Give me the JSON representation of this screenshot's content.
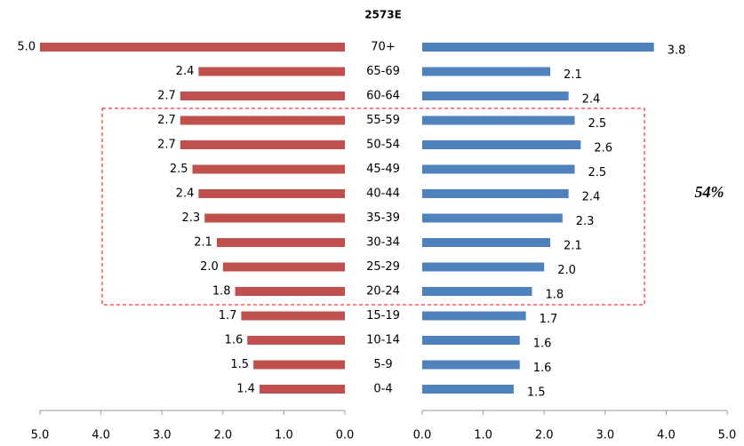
{
  "chart_data": {
    "type": "bar",
    "title": "2573E",
    "annotation": "54%",
    "categories": [
      "70+",
      "65-69",
      "60-64",
      "55-59",
      "50-54",
      "45-49",
      "40-44",
      "35-39",
      "30-34",
      "25-29",
      "20-24",
      "15-19",
      "10-14",
      "5-9",
      "0-4"
    ],
    "series": [
      {
        "color": "#c0504d",
        "xlim": [
          0,
          5
        ],
        "xreverse": true,
        "tick_label_color": "#ff0000",
        "values": [
          5.0,
          2.4,
          2.7,
          2.7,
          2.7,
          2.5,
          2.4,
          2.3,
          2.1,
          2.0,
          1.8,
          1.7,
          1.6,
          1.5,
          1.4
        ],
        "value_labels": [
          "5.0",
          "2.4",
          "2.7",
          "2.7",
          "2.7",
          "2.5",
          "2.4",
          "2.3",
          "2.1",
          "2.0",
          "1.8",
          "1.7",
          "1.6",
          "1.5",
          "1.4"
        ],
        "xticks": [
          {
            "value": 5,
            "label": "5.0"
          },
          {
            "value": 4,
            "label": "4.0"
          },
          {
            "value": 3,
            "label": "3.0"
          },
          {
            "value": 2,
            "label": "2.0"
          },
          {
            "value": 1,
            "label": "1.0"
          },
          {
            "value": 0,
            "label": "0.0"
          }
        ]
      },
      {
        "color": "#4f81bd",
        "xlim": [
          0,
          5
        ],
        "xreverse": false,
        "tick_label_color": "#000000",
        "values": [
          3.8,
          2.1,
          2.4,
          2.5,
          2.6,
          2.5,
          2.4,
          2.3,
          2.1,
          2.0,
          1.8,
          1.7,
          1.6,
          1.6,
          1.5
        ],
        "value_labels": [
          "3.8",
          "2.1",
          "2.4",
          "2.5",
          "2.6",
          "2.5",
          "2.4",
          "2.3",
          "2.1",
          "2.0",
          "1.8",
          "1.7",
          "1.6",
          "1.6",
          "1.5"
        ],
        "xticks": [
          {
            "value": 0,
            "label": "0.0"
          },
          {
            "value": 1,
            "label": "1.0"
          },
          {
            "value": 2,
            "label": "2.0"
          },
          {
            "value": 3,
            "label": "3.0"
          },
          {
            "value": 4,
            "label": "4.0"
          },
          {
            "value": 5,
            "label": "5.0"
          }
        ]
      }
    ]
  }
}
